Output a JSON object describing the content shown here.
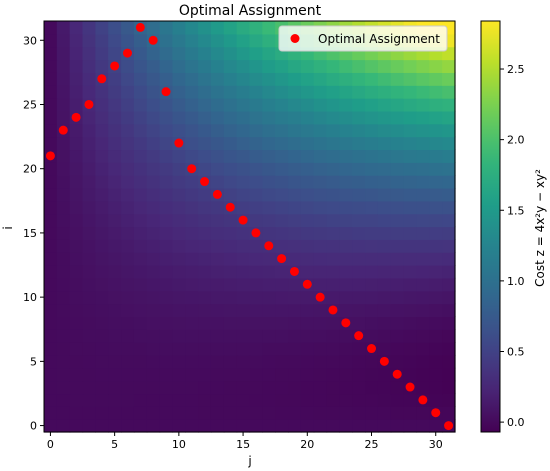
{
  "chart_data": {
    "type": "heatmap",
    "title": "Optimal Assignment",
    "xlabel": "j",
    "ylabel": "i",
    "colorbar_label": "Cost z = 4x²y − xy²",
    "grid": false,
    "legend_position": "top-right",
    "legend_label": "Optimal Assignment",
    "grid_size": 32,
    "x_ticks": [
      0,
      5,
      10,
      15,
      20,
      25,
      30
    ],
    "y_ticks": [
      0,
      5,
      10,
      15,
      20,
      25,
      30
    ],
    "colorbar_ticks": [
      0.0,
      0.5,
      1.0,
      1.5,
      2.0,
      2.5
    ],
    "colorbar_tick_labels": [
      "0.0",
      "0.5",
      "1.0",
      "1.5",
      "2.0",
      "2.5"
    ],
    "colorbar_range": [
      -0.07,
      2.84
    ],
    "cost_function": "4x^2 y - x y^2",
    "point_color": "#ff0000",
    "colormap": "viridis",
    "assignment": {
      "x": [
        0,
        1,
        2,
        3,
        4,
        5,
        6,
        7,
        8,
        9,
        10,
        11,
        12,
        13,
        14,
        15,
        16,
        17,
        18,
        19,
        20,
        21,
        22,
        23,
        24,
        25,
        26,
        27,
        28,
        29,
        30,
        31
      ],
      "y": [
        21,
        23,
        24,
        25,
        27,
        28,
        29,
        31,
        30,
        26,
        22,
        20,
        19,
        18,
        17,
        16,
        15,
        14,
        13,
        12,
        11,
        10,
        9,
        8,
        7,
        6,
        5,
        4,
        3,
        2,
        1,
        0
      ]
    }
  }
}
